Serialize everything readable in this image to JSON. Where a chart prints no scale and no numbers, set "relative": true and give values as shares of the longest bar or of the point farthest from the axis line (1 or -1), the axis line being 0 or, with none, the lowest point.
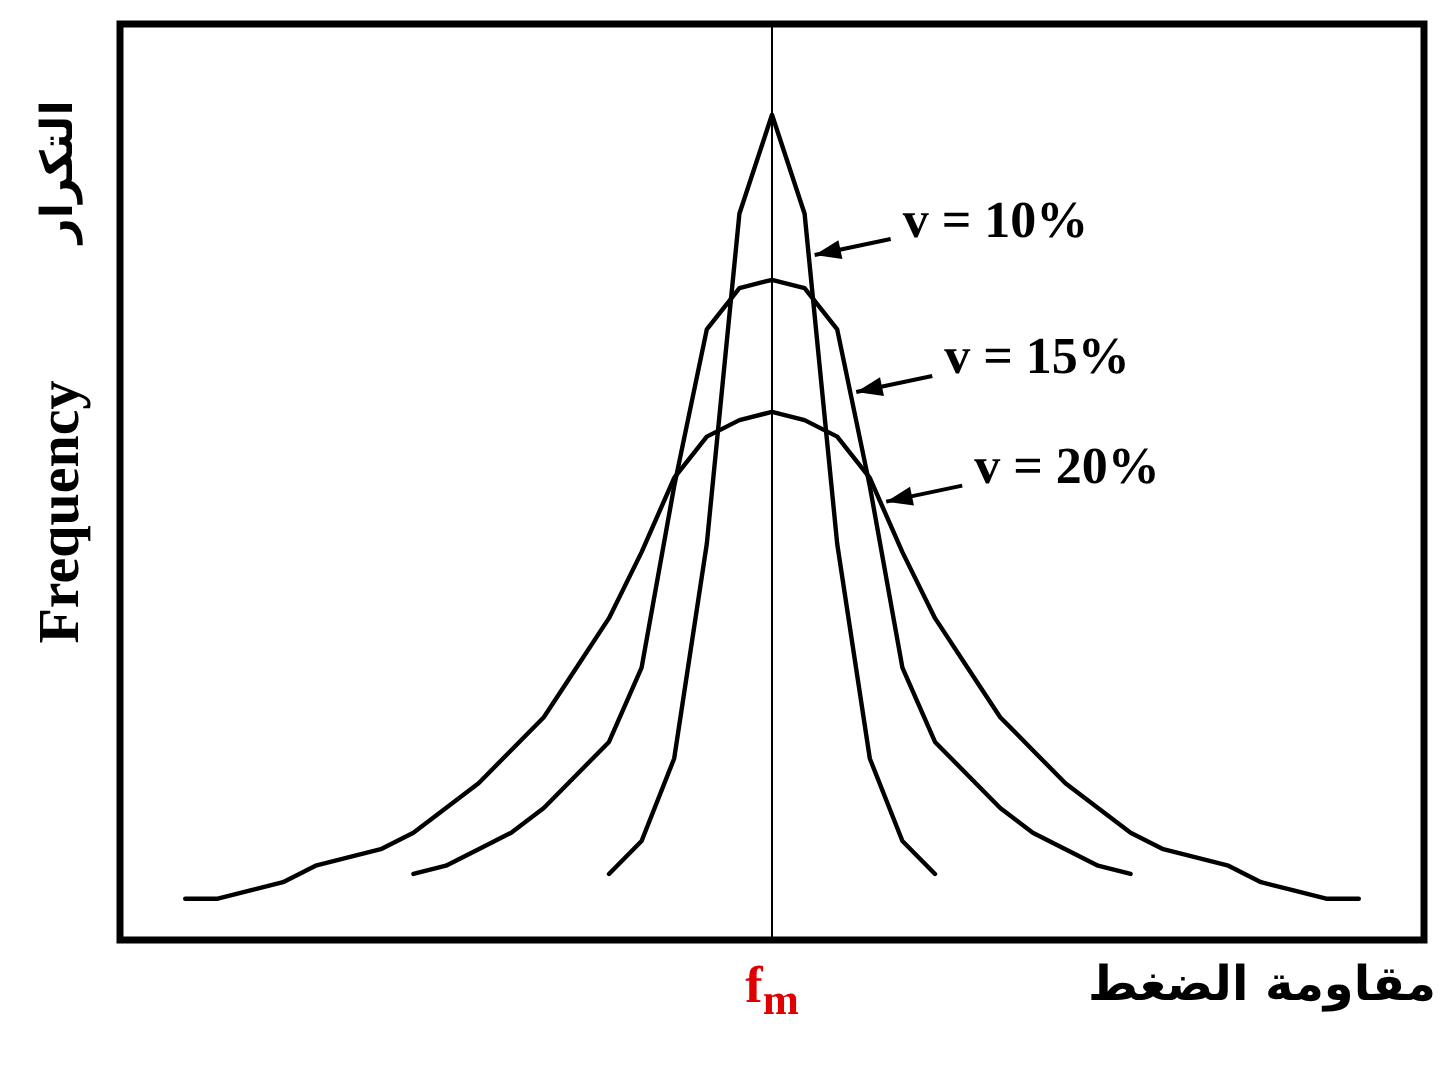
{
  "chart_data": {
    "type": "line",
    "relative": true,
    "xlabel": "مقاومة الضغط",
    "ylabel": "Frequency",
    "marker": "none",
    "line_style": "solid",
    "legend": "top right",
    "categories": [
      null,
      null,
      null,
      null,
      null,
      null,
      null,
      null,
      null,
      null,
      null,
      null,
      null,
      null,
      null,
      null,
      null,
      null,
      null,
      null,
      null,
      null,
      null,
      null,
      null,
      null,
      null,
      null,
      null,
      null,
      null,
      null,
      null,
      null,
      null,
      null,
      null,
      null,
      null,
      null,
      null
    ],
    "ref_lines": [
      {
        "axis": "x",
        "label": "f$_{m}$",
        "color": "#000000"
      }
    ],
    "series": [
      {
        "name": "v = 10%",
        "color": "#000000",
        "values": [
          null,
          null,
          null,
          null,
          null,
          null,
          null,
          null,
          null,
          null,
          null,
          null,
          null,
          null,
          null,
          0.08,
          0.12,
          0.22,
          0.48,
          0.88,
          1,
          0.88,
          0.48,
          0.22,
          0.12,
          0.08,
          null,
          null,
          null,
          null,
          null,
          null,
          null,
          null,
          null,
          null,
          null,
          null,
          null,
          null,
          null
        ]
      },
      {
        "name": "v = 15%",
        "color": "#000000",
        "values": [
          null,
          null,
          null,
          null,
          null,
          null,
          null,
          null,
          null,
          0.08,
          0.09,
          0.11,
          0.13,
          0.16,
          0.2,
          0.24,
          0.33,
          0.55,
          0.74,
          0.79,
          0.8,
          0.79,
          0.74,
          0.55,
          0.33,
          0.24,
          0.2,
          0.16,
          0.13,
          0.11,
          0.09,
          0.08,
          null,
          null,
          null,
          null,
          null,
          null,
          null,
          null,
          null
        ]
      },
      {
        "name": "v = 20%",
        "color": "#000000",
        "values": [
          null,
          null,
          0.05,
          0.05,
          0.06,
          0.07,
          0.09,
          0.1,
          0.11,
          0.13,
          0.16,
          0.19,
          0.23,
          0.27,
          0.33,
          0.39,
          0.47,
          0.56,
          0.61,
          0.63,
          0.64,
          0.63,
          0.61,
          0.56,
          0.47,
          0.39,
          0.33,
          0.27,
          0.23,
          0.19,
          0.16,
          0.13,
          0.11,
          0.1,
          0.09,
          0.07,
          0.06,
          0.05,
          0.05,
          null,
          null
        ]
      }
    ],
    "annotations": [
      "التكرار"
    ]
  }
}
